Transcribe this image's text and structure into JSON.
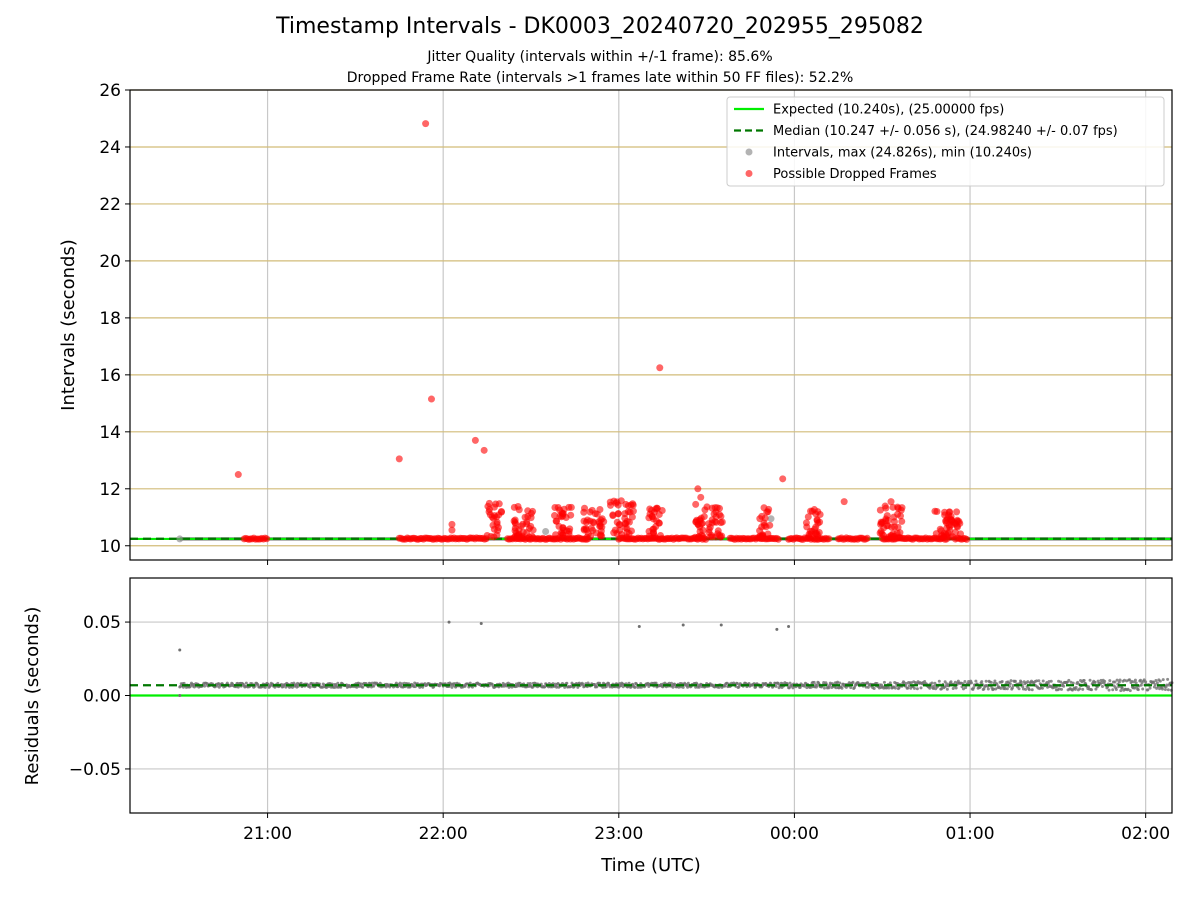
{
  "chart_data": [
    {
      "type": "scatter",
      "title": "Timestamp Intervals - DK0003_20240720_202955_295082",
      "subtitle_lines": [
        "Jitter Quality (intervals within +/-1 frame): 85.6%",
        "Dropped Frame Rate (intervals >1 frames late within 50 FF files): 52.2%"
      ],
      "xlabel": "",
      "ylabel": "Intervals (seconds)",
      "xlim": [
        "20:13",
        "02:09"
      ],
      "ylim": [
        9.5,
        26
      ],
      "yticks": [
        10,
        12,
        14,
        16,
        18,
        20,
        22,
        24,
        26
      ],
      "legend_position": "top-right",
      "grid": "vertical x grid (light gray), horizontal y grid (tan)",
      "legend": [
        "Expected (10.240s), (25.00000 fps)",
        "Median (10.247 +/- 0.056 s), (24.98240 +/- 0.07 fps)",
        "Intervals, max (24.826s), min (10.240s)",
        "Possible Dropped Frames"
      ],
      "expected_line": 10.24,
      "median_line": 10.247,
      "colors": {
        "expected": "#00ee00",
        "median": "#007700",
        "intervals": "#808080",
        "dropped": "#ff0000",
        "ygrid": "#d2bc78"
      },
      "dropped_outliers": [
        {
          "x": "20:50",
          "y": 12.5
        },
        {
          "x": "21:45",
          "y": 13.05
        },
        {
          "x": "21:54",
          "y": 24.82
        },
        {
          "x": "21:56",
          "y": 15.15
        },
        {
          "x": "22:03",
          "y": 10.75
        },
        {
          "x": "22:03",
          "y": 10.55
        },
        {
          "x": "22:11",
          "y": 13.7
        },
        {
          "x": "22:14",
          "y": 13.35
        },
        {
          "x": "23:14",
          "y": 16.25
        },
        {
          "x": "23:27",
          "y": 12.0
        },
        {
          "x": "23:28",
          "y": 11.7
        },
        {
          "x": "23:56",
          "y": 12.35
        },
        {
          "x": "00:17",
          "y": 11.55
        },
        {
          "x": "00:33",
          "y": 11.55
        }
      ],
      "dropped_clusters": [
        {
          "x_start": "22:15",
          "x_end": "22:20",
          "y_min": 10.3,
          "y_max": 11.5
        },
        {
          "x_start": "22:24",
          "x_end": "22:31",
          "y_min": 10.3,
          "y_max": 11.5
        },
        {
          "x_start": "22:38",
          "x_end": "22:44",
          "y_min": 10.3,
          "y_max": 11.4
        },
        {
          "x_start": "22:48",
          "x_end": "22:55",
          "y_min": 10.3,
          "y_max": 11.4
        },
        {
          "x_start": "22:57",
          "x_end": "23:05",
          "y_min": 10.3,
          "y_max": 11.6
        },
        {
          "x_start": "23:10",
          "x_end": "23:15",
          "y_min": 10.3,
          "y_max": 11.4
        },
        {
          "x_start": "23:26",
          "x_end": "23:36",
          "y_min": 10.3,
          "y_max": 11.5
        },
        {
          "x_start": "23:48",
          "x_end": "23:52",
          "y_min": 10.3,
          "y_max": 11.4
        },
        {
          "x_start": "00:04",
          "x_end": "00:09",
          "y_min": 10.3,
          "y_max": 11.3
        },
        {
          "x_start": "00:29",
          "x_end": "00:37",
          "y_min": 10.3,
          "y_max": 11.4
        },
        {
          "x_start": "00:48",
          "x_end": "00:57",
          "y_min": 10.3,
          "y_max": 11.3
        }
      ],
      "dropped_baseline_runs": [
        {
          "x_start": "20:52",
          "x_end": "21:00",
          "y": 10.25
        },
        {
          "x_start": "21:45",
          "x_end": "22:15",
          "y": 10.25
        },
        {
          "x_start": "22:22",
          "x_end": "22:50",
          "y": 10.25
        },
        {
          "x_start": "23:00",
          "x_end": "23:30",
          "y": 10.25
        },
        {
          "x_start": "23:38",
          "x_end": "23:55",
          "y": 10.25
        },
        {
          "x_start": "23:58",
          "x_end": "00:12",
          "y": 10.25
        },
        {
          "x_start": "00:15",
          "x_end": "00:25",
          "y": 10.25
        },
        {
          "x_start": "00:30",
          "x_end": "00:52",
          "y": 10.25
        },
        {
          "x_start": "00:55",
          "x_end": "00:59",
          "y": 10.25
        }
      ],
      "gray_interval_points": [
        {
          "x": "20:30",
          "y": 10.24
        },
        {
          "x": "22:35",
          "y": 10.5
        },
        {
          "x": "23:52",
          "y": 10.95
        }
      ]
    },
    {
      "type": "scatter",
      "title": "",
      "xlabel": "Time (UTC)",
      "ylabel": "Residuals (seconds)",
      "xlim": [
        "20:13",
        "02:09"
      ],
      "ylim": [
        -0.08,
        0.08
      ],
      "yticks": [
        -0.05,
        0.0,
        0.05
      ],
      "ytick_labels": [
        "−0.05",
        "0.00",
        "0.05"
      ],
      "xticks": [
        "21:00",
        "22:00",
        "23:00",
        "00:00",
        "01:00",
        "02:00"
      ],
      "grid": true,
      "expected_line": 0.0,
      "median_line": 0.007,
      "colors": {
        "expected": "#00ee00",
        "median": "#007700",
        "points": "#707070"
      },
      "residual_outliers": [
        {
          "x": "20:30",
          "y": 0.031
        },
        {
          "x": "22:02",
          "y": 0.05
        },
        {
          "x": "22:13",
          "y": 0.049
        },
        {
          "x": "23:07",
          "y": 0.047
        },
        {
          "x": "23:22",
          "y": 0.048
        },
        {
          "x": "23:35",
          "y": 0.048
        },
        {
          "x": "23:54",
          "y": 0.045
        },
        {
          "x": "23:58",
          "y": 0.047
        }
      ],
      "residual_band": {
        "x_start": "20:30",
        "x_end": "02:09",
        "y_center": 0.007,
        "spread_early": 0.0015,
        "spread_late": 0.004
      }
    }
  ]
}
